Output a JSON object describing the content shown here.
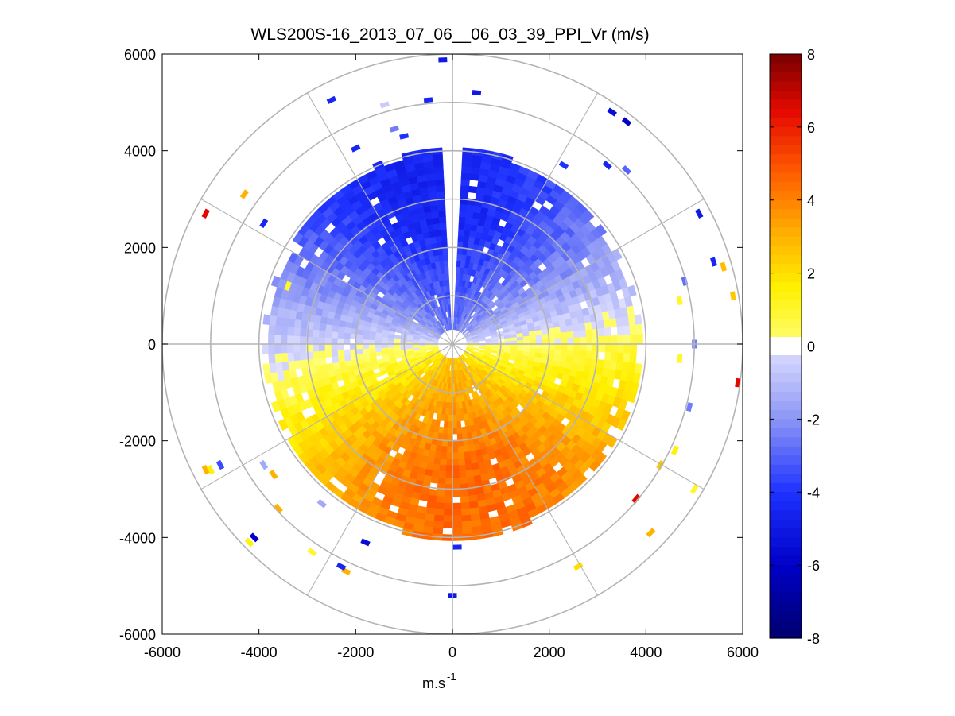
{
  "chart_data": {
    "type": "heatmap",
    "subtype": "polar-ppi",
    "title": "WLS200S-16_2013_07_06__06_03_39_PPI_Vr (m/s)",
    "xlabel": "m.s",
    "xlabel_superscript": "-1",
    "ylabel": "",
    "xlim": [
      -6000,
      6000
    ],
    "ylim": [
      -6000,
      6000
    ],
    "x_ticks": [
      "-6000",
      "-4000",
      "-2000",
      "0",
      "2000",
      "4000",
      "6000"
    ],
    "y_ticks": [
      "6000",
      "4000",
      "2000",
      "0",
      "-2000",
      "-4000",
      "-6000"
    ],
    "range_rings_m": [
      1000,
      2000,
      3000,
      4000,
      5000,
      6000
    ],
    "radial_spokes_deg": [
      0,
      30,
      60,
      90,
      120,
      150,
      180,
      210,
      240,
      270,
      300,
      330
    ],
    "colorbar": {
      "range": [
        -8,
        8
      ],
      "ticks": [
        "8",
        "6",
        "4",
        "2",
        "0",
        "-2",
        "-4",
        "-6",
        "-8"
      ],
      "colormap": [
        "#00006e",
        "#0000c8",
        "#0a28ff",
        "#6e78f0",
        "#dcdcff",
        "#ffffff",
        "#ffff00",
        "#ffb400",
        "#ff6e00",
        "#ff1400",
        "#c80000",
        "#780000"
      ]
    },
    "field": {
      "description": "Radial velocity field, negative (toward, blue) in northern half, positive (away, yellow to red) in southern half",
      "toward_direction_deg": 0,
      "max_abs_velocity_ms": 4.5,
      "dense_data_range_m": [
        300,
        4000
      ],
      "blank_sector_deg": [
        356,
        3
      ]
    },
    "sparse_returns": [
      {
        "x": -200,
        "y": 5880,
        "v": -5.0
      },
      {
        "x": 500,
        "y": 5200,
        "v": -5.0
      },
      {
        "x": -500,
        "y": 5050,
        "v": -4.5
      },
      {
        "x": -2500,
        "y": 5050,
        "v": -4.5
      },
      {
        "x": -1400,
        "y": 4950,
        "v": -0.6
      },
      {
        "x": 3600,
        "y": 4600,
        "v": -6.0
      },
      {
        "x": 3300,
        "y": 4800,
        "v": -5.5
      },
      {
        "x": -1200,
        "y": 4450,
        "v": -2.5
      },
      {
        "x": -1000,
        "y": 4300,
        "v": -4.0
      },
      {
        "x": -2000,
        "y": 4050,
        "v": -4.5
      },
      {
        "x": 3200,
        "y": 3700,
        "v": -4.5
      },
      {
        "x": 3600,
        "y": 3600,
        "v": -3.0
      },
      {
        "x": 2300,
        "y": 3700,
        "v": -4.0
      },
      {
        "x": 5100,
        "y": 2700,
        "v": -5.0
      },
      {
        "x": 5400,
        "y": 1700,
        "v": -4.5
      },
      {
        "x": 4800,
        "y": 1300,
        "v": -2.8
      },
      {
        "x": 5600,
        "y": 1600,
        "v": 2.8
      },
      {
        "x": 5800,
        "y": 1000,
        "v": 2.5
      },
      {
        "x": 4700,
        "y": 900,
        "v": 1.0
      },
      {
        "x": 5000,
        "y": 0,
        "v": -2.5
      },
      {
        "x": 5900,
        "y": -800,
        "v": 6.5
      },
      {
        "x": 4700,
        "y": -300,
        "v": 1.0
      },
      {
        "x": 4900,
        "y": -1300,
        "v": -2.5
      },
      {
        "x": 4600,
        "y": -2200,
        "v": 1.5
      },
      {
        "x": 4300,
        "y": -2500,
        "v": 2.5
      },
      {
        "x": 5000,
        "y": -3000,
        "v": 1.0
      },
      {
        "x": 3800,
        "y": -3200,
        "v": 6.5
      },
      {
        "x": 4100,
        "y": -3900,
        "v": 3.0
      },
      {
        "x": 2600,
        "y": -4600,
        "v": 2.0
      },
      {
        "x": 0,
        "y": -5200,
        "v": -5.0
      },
      {
        "x": 100,
        "y": -4200,
        "v": -4.5
      },
      {
        "x": -2200,
        "y": -4700,
        "v": 3.0
      },
      {
        "x": -2300,
        "y": -4600,
        "v": -4.5
      },
      {
        "x": -2900,
        "y": -4300,
        "v": 1.0
      },
      {
        "x": -4100,
        "y": -4000,
        "v": -6.0
      },
      {
        "x": -4200,
        "y": -4100,
        "v": 1.5
      },
      {
        "x": -1800,
        "y": -4100,
        "v": -5.5
      },
      {
        "x": -2700,
        "y": -3300,
        "v": -1.5
      },
      {
        "x": -3600,
        "y": -3400,
        "v": 3.0
      },
      {
        "x": -3900,
        "y": -2500,
        "v": -1.5
      },
      {
        "x": -3700,
        "y": -2700,
        "v": 3.0
      },
      {
        "x": -5100,
        "y": -2600,
        "v": 3.0
      },
      {
        "x": -5000,
        "y": -2600,
        "v": 1.5
      },
      {
        "x": -4800,
        "y": -2500,
        "v": -3.5
      },
      {
        "x": -5100,
        "y": 2700,
        "v": 6.5
      },
      {
        "x": -4300,
        "y": 3100,
        "v": 3.0
      },
      {
        "x": -3900,
        "y": 2500,
        "v": -4.5
      },
      {
        "x": -3400,
        "y": 1200,
        "v": 1.0
      }
    ]
  }
}
